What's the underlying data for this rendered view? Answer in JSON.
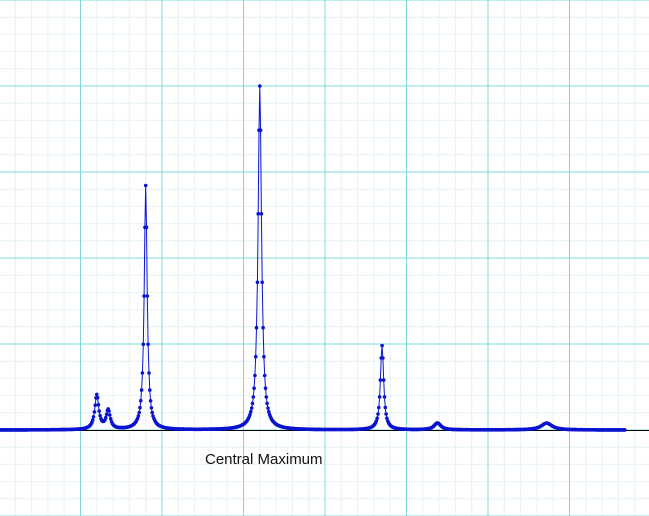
{
  "annotation": "Central Maximum",
  "colors": {
    "major_grid": "#7fd8d8",
    "minor_grid": "#e6f2f2",
    "axis": "#000000",
    "series": "#0a14d0",
    "background": "#ffffff"
  },
  "chart_data": {
    "type": "line",
    "title": "",
    "xlabel": "",
    "ylabel": "",
    "grid": true,
    "x_major_step": 5,
    "y_major_step": 5,
    "minor_per_major": 5,
    "xlim": [
      -15,
      24.6
    ],
    "ylim": [
      -5,
      25
    ],
    "series": [
      {
        "marker": "dot",
        "peaks": [
          {
            "x": -9.0,
            "height": 2.0,
            "width": 0.15
          },
          {
            "x": -8.3,
            "height": 1.1,
            "width": 0.15
          },
          {
            "x": -6.0,
            "height": 14.2,
            "width": 0.11
          },
          {
            "x": 1.0,
            "height": 20.0,
            "width": 0.13
          },
          {
            "x": 8.5,
            "height": 4.9,
            "width": 0.12
          },
          {
            "x": 11.9,
            "height": 0.4,
            "width": 0.25
          },
          {
            "x": 18.6,
            "height": 0.4,
            "width": 0.4
          }
        ],
        "baseline": 0,
        "x_start": -15,
        "x_end": 23.4
      }
    ]
  }
}
